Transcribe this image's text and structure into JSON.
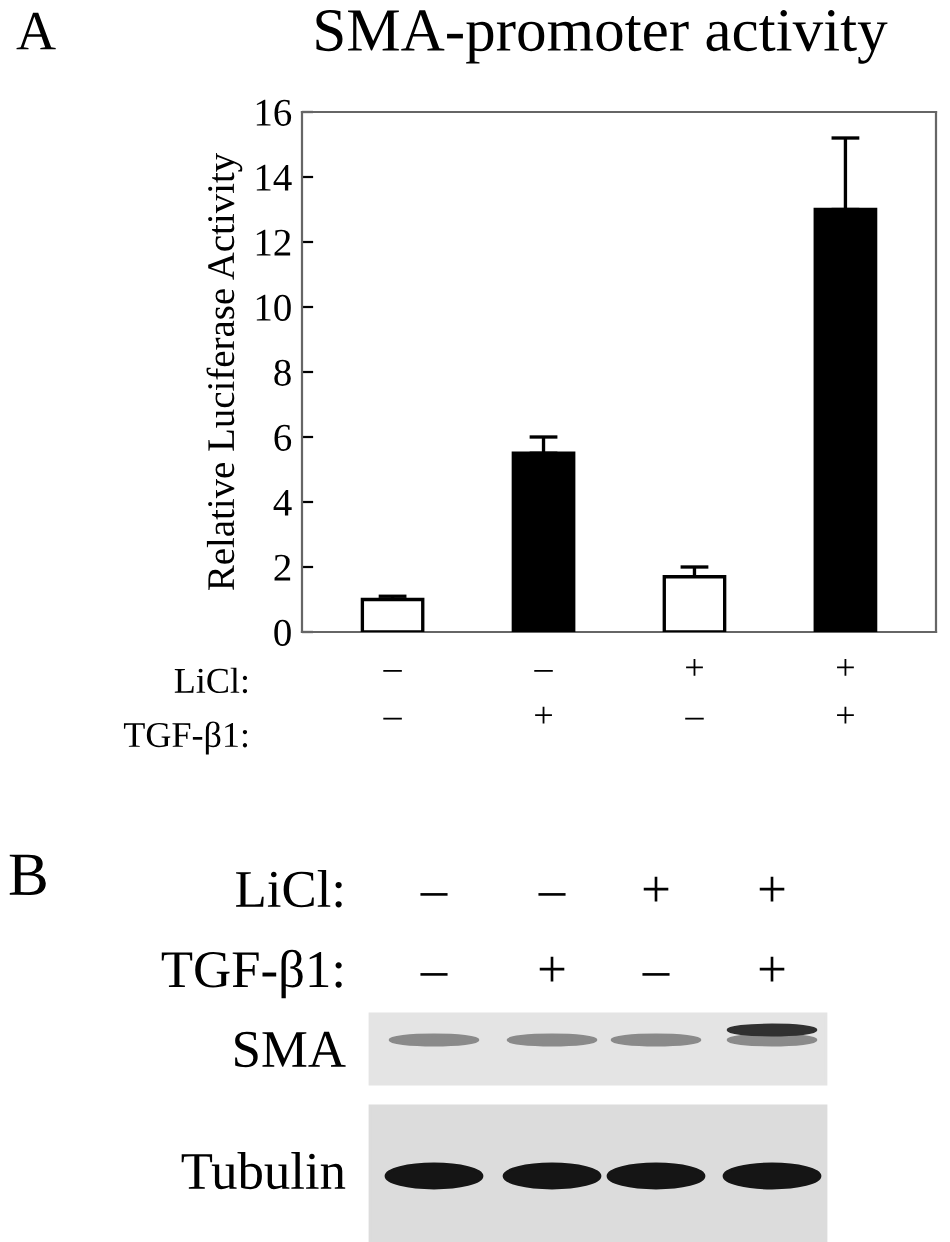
{
  "chart_data": {
    "type": "bar",
    "title": "SMA-promoter activity",
    "ylabel": "Relative Luciferase Activity",
    "categories": [
      "–\n–",
      "–\n+",
      "+\n–",
      "+\n+"
    ],
    "values": [
      1.0,
      5.5,
      1.7,
      13.0
    ],
    "colors": [
      "#ffffff",
      "#000000",
      "#ffffff",
      "#000000"
    ],
    "errors": [
      [
        1.0,
        1.1
      ],
      [
        5.5,
        6.0
      ],
      [
        1.7,
        2.0
      ],
      [
        13.0,
        15.2
      ]
    ],
    "ylim": [
      0,
      16
    ],
    "yticks": [
      0,
      2,
      4,
      6,
      8,
      10,
      12,
      14,
      16
    ],
    "annotations": [
      "A",
      "LiCl:",
      "TGF-β1:",
      "B",
      "LiCl:",
      "TGF-β1:",
      "–",
      "–",
      "+",
      "+",
      "–",
      "+",
      "–",
      "+",
      "SMA",
      "Tubulin"
    ]
  }
}
